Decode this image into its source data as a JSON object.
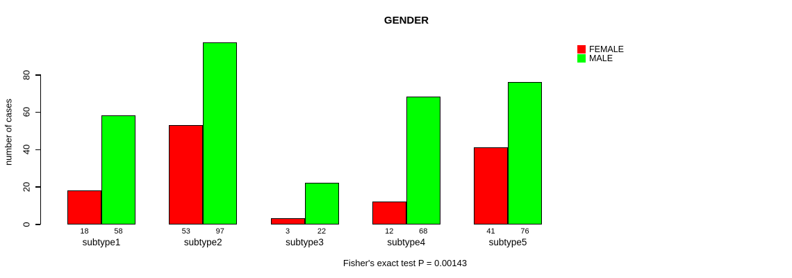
{
  "chart_data": {
    "type": "bar",
    "title": "GENDER",
    "ylabel": "number of cases",
    "xlabel": "",
    "caption": "Fisher's exact test P = 0.00143",
    "categories": [
      "subtype1",
      "subtype2",
      "subtype3",
      "subtype4",
      "subtype5"
    ],
    "series": [
      {
        "name": "FEMALE",
        "color": "#ff0000",
        "values": [
          18,
          53,
          3,
          12,
          41
        ]
      },
      {
        "name": "MALE",
        "color": "#00ff00",
        "values": [
          58,
          97,
          22,
          68,
          76
        ]
      }
    ],
    "bar_value_labels": [
      [
        "18",
        "58"
      ],
      [
        "53",
        "97"
      ],
      [
        "3",
        "22"
      ],
      [
        "12",
        "68"
      ],
      [
        "41",
        "76"
      ]
    ],
    "yticks": [
      0,
      20,
      40,
      60,
      80
    ],
    "ylim": [
      0,
      80
    ],
    "grid": false,
    "legend_position": "top-right",
    "legend": [
      {
        "label": "FEMALE",
        "color": "#ff0000"
      },
      {
        "label": "MALE",
        "color": "#00ff00"
      }
    ],
    "colors": {
      "background": "#ffffff",
      "axis": "#000000",
      "text": "#000000"
    }
  }
}
